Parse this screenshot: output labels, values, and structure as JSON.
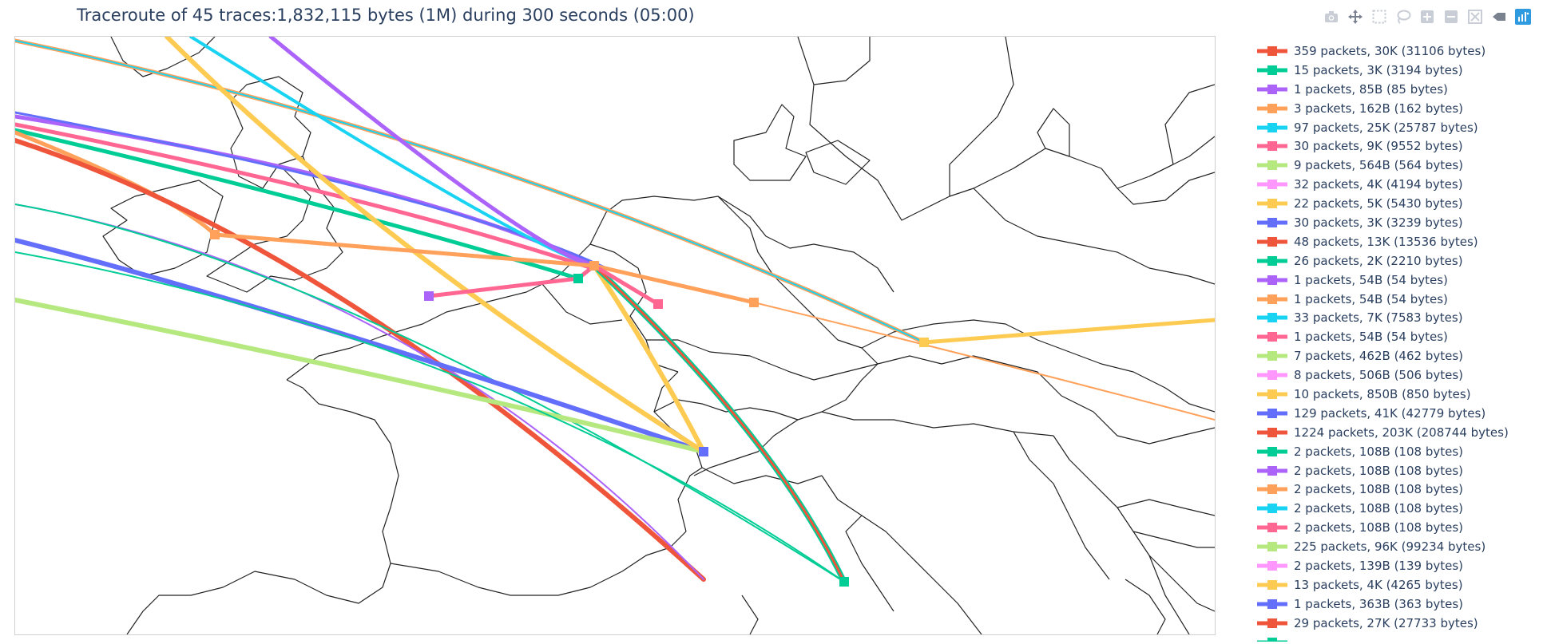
{
  "title": "Traceroute of 45 traces:1,832,115 bytes (1M) during 300 seconds (05:00)",
  "modebar": [
    {
      "name": "camera-icon",
      "label": "Download plot as a png"
    },
    {
      "name": "pan-icon",
      "label": "Pan"
    },
    {
      "name": "box-select-icon",
      "label": "Box Select"
    },
    {
      "name": "lasso-select-icon",
      "label": "Lasso Select"
    },
    {
      "name": "zoom-in-icon",
      "label": "Zoom in"
    },
    {
      "name": "zoom-out-icon",
      "label": "Zoom out"
    },
    {
      "name": "reset-icon",
      "label": "Reset"
    },
    {
      "name": "back-icon",
      "label": "Back"
    },
    {
      "name": "plotly-logo-icon",
      "label": "Produced with Plotly"
    }
  ],
  "colors": {
    "red": "#EF553B",
    "green": "#00CC96",
    "purple": "#AB63FA",
    "orange": "#FFA15A",
    "cyan": "#19D3F3",
    "pink": "#FF6692",
    "lime": "#B6E880",
    "magenta": "#FF97FF",
    "yellow": "#FECB52",
    "blue": "#636EFA",
    "text": "#2a3f5f"
  },
  "legend": [
    {
      "label": "359 packets, 30K (31106 bytes)",
      "color": "#EF553B"
    },
    {
      "label": "15 packets, 3K (3194 bytes)",
      "color": "#00CC96"
    },
    {
      "label": "1 packets, 85B (85 bytes)",
      "color": "#AB63FA"
    },
    {
      "label": "3 packets, 162B (162 bytes)",
      "color": "#FFA15A"
    },
    {
      "label": "97 packets, 25K (25787 bytes)",
      "color": "#19D3F3"
    },
    {
      "label": "30 packets, 9K (9552 bytes)",
      "color": "#FF6692"
    },
    {
      "label": "9 packets, 564B (564 bytes)",
      "color": "#B6E880"
    },
    {
      "label": "32 packets, 4K (4194 bytes)",
      "color": "#FF97FF"
    },
    {
      "label": "22 packets, 5K (5430 bytes)",
      "color": "#FECB52"
    },
    {
      "label": "30 packets, 3K (3239 bytes)",
      "color": "#636EFA"
    },
    {
      "label": "48 packets, 13K (13536 bytes)",
      "color": "#EF553B"
    },
    {
      "label": "26 packets, 2K (2210 bytes)",
      "color": "#00CC96"
    },
    {
      "label": "1 packets, 54B (54 bytes)",
      "color": "#AB63FA"
    },
    {
      "label": "1 packets, 54B (54 bytes)",
      "color": "#FFA15A"
    },
    {
      "label": "33 packets, 7K (7583 bytes)",
      "color": "#19D3F3"
    },
    {
      "label": "1 packets, 54B (54 bytes)",
      "color": "#FF6692"
    },
    {
      "label": "7 packets, 462B (462 bytes)",
      "color": "#B6E880"
    },
    {
      "label": "8 packets, 506B (506 bytes)",
      "color": "#FF97FF"
    },
    {
      "label": "10 packets, 850B (850 bytes)",
      "color": "#FECB52"
    },
    {
      "label": "129 packets, 41K (42779 bytes)",
      "color": "#636EFA"
    },
    {
      "label": "1224 packets, 203K (208744 bytes)",
      "color": "#EF553B"
    },
    {
      "label": "2 packets, 108B (108 bytes)",
      "color": "#00CC96"
    },
    {
      "label": "2 packets, 108B (108 bytes)",
      "color": "#AB63FA"
    },
    {
      "label": "2 packets, 108B (108 bytes)",
      "color": "#FFA15A"
    },
    {
      "label": "2 packets, 108B (108 bytes)",
      "color": "#19D3F3"
    },
    {
      "label": "2 packets, 108B (108 bytes)",
      "color": "#FF6692"
    },
    {
      "label": "225 packets, 96K (99234 bytes)",
      "color": "#B6E880"
    },
    {
      "label": "2 packets, 139B (139 bytes)",
      "color": "#FF97FF"
    },
    {
      "label": "13 packets, 4K (4265 bytes)",
      "color": "#FECB52"
    },
    {
      "label": "1 packets, 363B (363 bytes)",
      "color": "#636EFA"
    },
    {
      "label": "29 packets, 27K (27733 bytes)",
      "color": "#EF553B"
    },
    {
      "label": "",
      "color": "#00CC96"
    }
  ]
}
